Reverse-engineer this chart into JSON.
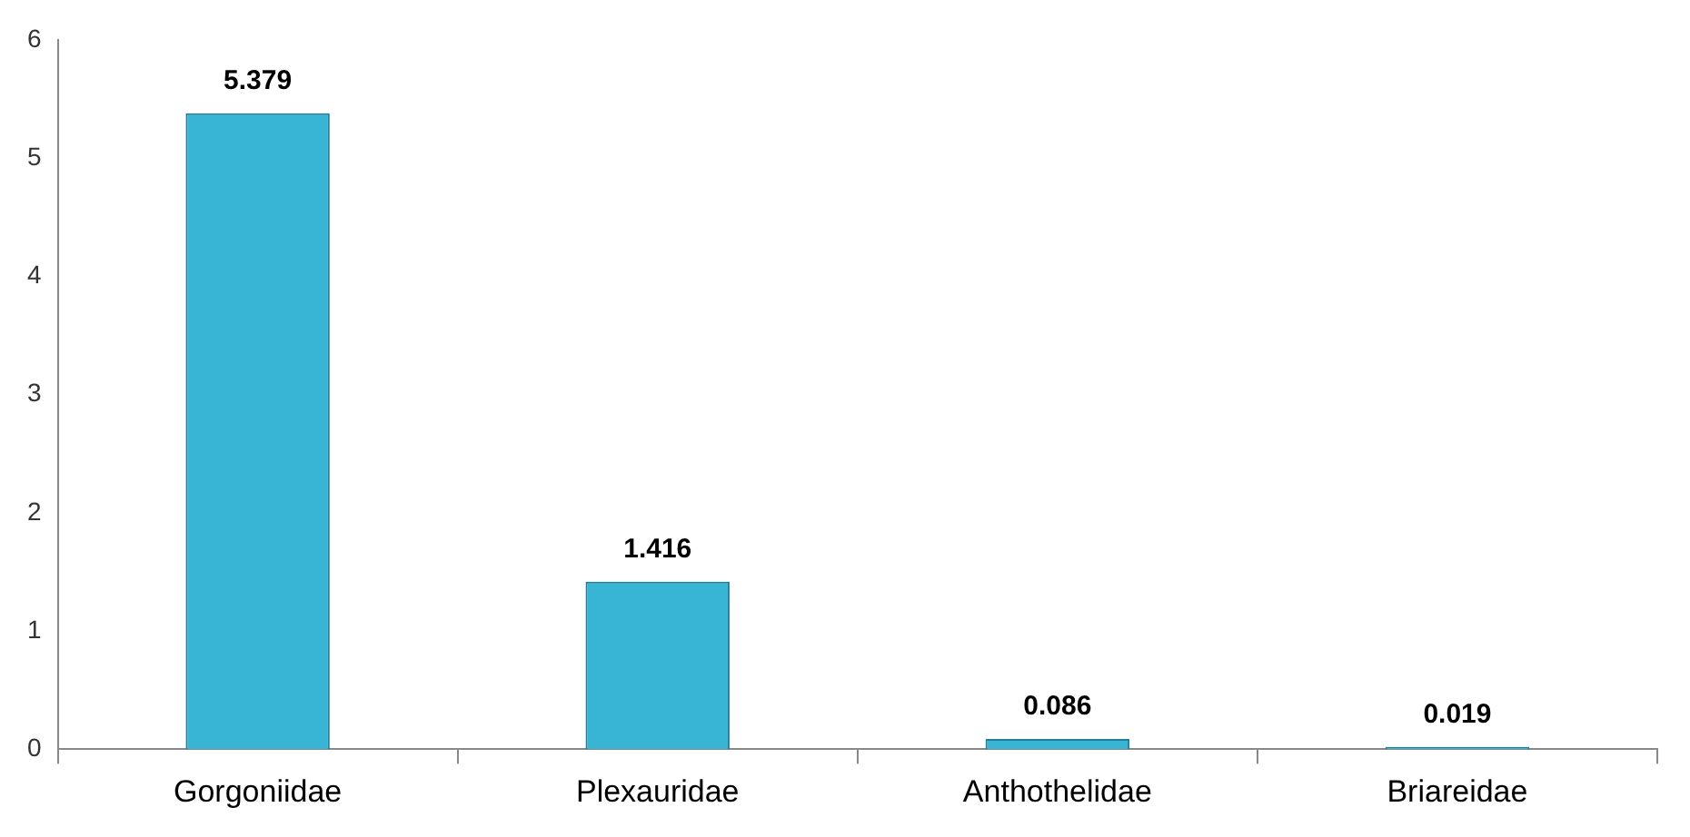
{
  "chart_data": {
    "type": "bar",
    "categories": [
      "Gorgoniidae",
      "Plexauridae",
      "Anthothelidae",
      "Briareidae"
    ],
    "values": [
      5.379,
      1.416,
      0.086,
      0.019
    ],
    "color": "#38b4d4",
    "ylim": [
      0,
      6
    ],
    "yticks": [
      0,
      1,
      2,
      3,
      4,
      5,
      6
    ],
    "grid": false,
    "data_labels": true,
    "legend": false
  }
}
